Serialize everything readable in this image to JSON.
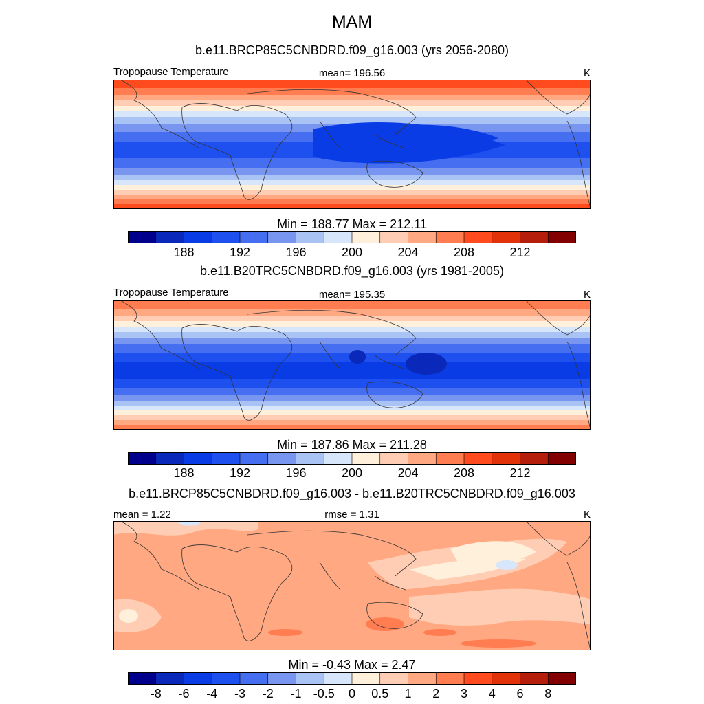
{
  "figure": {
    "title": "MAM"
  },
  "panels": [
    {
      "id": "top",
      "title": "b.e11.BRCP85C5CNBDRD.f09_g16.003 (yrs 2056-2080)",
      "left_label": "Tropopause Temperature",
      "center_label": "mean= 196.56",
      "right_label": "K",
      "minmax": "Min = 188.77 Max = 212.11"
    },
    {
      "id": "middle",
      "title": "b.e11.B20TRC5CNBDRD.f09_g16.003 (yrs 1981-2005)",
      "left_label": "Tropopause Temperature",
      "center_label": "mean= 195.35",
      "right_label": "K",
      "minmax": "Min = 187.86 Max = 211.28"
    },
    {
      "id": "bottom",
      "title": "b.e11.BRCP85C5CNBDRD.f09_g16.003 - b.e11.B20TRC5CNBDRD.f09_g16.003",
      "left_label": "mean =   1.22",
      "center_label": "rmse =   1.31",
      "right_label": "K",
      "minmax": "Min =  -0.43 Max =   2.47"
    }
  ],
  "chart_data": [
    {
      "type": "heatmap",
      "title": "b.e11.BRCP85C5CNBDRD.f09_g16.003 (yrs 2056-2080)",
      "variable": "Tropopause Temperature",
      "units": "K",
      "mean": 196.56,
      "min": 188.77,
      "max": 212.11,
      "colorbar_ticks": [
        "188",
        "192",
        "196",
        "200",
        "204",
        "208",
        "212"
      ],
      "colorbar_colors": [
        "#00008c",
        "#0a28b9",
        "#0a3ce6",
        "#1e50f0",
        "#466ef0",
        "#7896f0",
        "#aac3f5",
        "#d7e6fa",
        "#fff0dc",
        "#ffcdb4",
        "#ffa882",
        "#ff7d50",
        "#ff4b1e",
        "#e1320a",
        "#b41e0a",
        "#820000"
      ],
      "zonal_profile_K": [
        211,
        208,
        205,
        201,
        197,
        193,
        190,
        189,
        190,
        193,
        197,
        201,
        205,
        208,
        211
      ]
    },
    {
      "type": "heatmap",
      "title": "b.e11.B20TRC5CNBDRD.f09_g16.003 (yrs 1981-2005)",
      "variable": "Tropopause Temperature",
      "units": "K",
      "mean": 195.35,
      "min": 187.86,
      "max": 211.28,
      "colorbar_ticks": [
        "188",
        "192",
        "196",
        "200",
        "204",
        "208",
        "212"
      ],
      "colorbar_colors": [
        "#00008c",
        "#0a28b9",
        "#0a3ce6",
        "#1e50f0",
        "#466ef0",
        "#7896f0",
        "#aac3f5",
        "#d7e6fa",
        "#fff0dc",
        "#ffcdb4",
        "#ffa882",
        "#ff7d50",
        "#ff4b1e",
        "#e1320a",
        "#b41e0a",
        "#820000"
      ],
      "zonal_profile_K": [
        210,
        207,
        204,
        200,
        196,
        192,
        189,
        188,
        189,
        192,
        196,
        200,
        204,
        207,
        210
      ]
    },
    {
      "type": "heatmap",
      "title": "b.e11.BRCP85C5CNBDRD.f09_g16.003 - b.e11.B20TRC5CNBDRD.f09_g16.003",
      "units": "K",
      "mean": 1.22,
      "rmse": 1.31,
      "min": -0.43,
      "max": 2.47,
      "colorbar_ticks": [
        "-8",
        "-6",
        "-4",
        "-3",
        "-2",
        "-1",
        "-0.5",
        "0",
        "0.5",
        "1",
        "2",
        "3",
        "4",
        "6",
        "8"
      ],
      "colorbar_colors": [
        "#00008c",
        "#0a28b9",
        "#0a3ce6",
        "#1e50f0",
        "#466ef0",
        "#7896f0",
        "#aac3f5",
        "#d7e6fa",
        "#fff0dc",
        "#ffcdb4",
        "#ffa882",
        "#ff7d50",
        "#ff4b1e",
        "#e1320a",
        "#b41e0a",
        "#820000"
      ]
    }
  ]
}
